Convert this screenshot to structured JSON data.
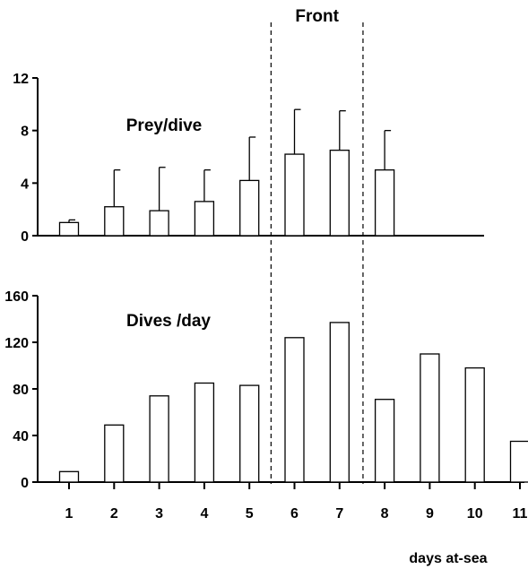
{
  "chart_data": [
    {
      "type": "bar",
      "title": "Prey/dive",
      "categories": [
        "1",
        "2",
        "3",
        "4",
        "5",
        "6",
        "7",
        "8",
        "9",
        "10",
        "11"
      ],
      "values": [
        1,
        2.2,
        1.9,
        2.6,
        4.2,
        6.2,
        6.5,
        5.0,
        null,
        null,
        null
      ],
      "error_upper": [
        1.2,
        5.0,
        5.2,
        5.0,
        7.5,
        9.6,
        9.5,
        8.0,
        null,
        null,
        null
      ],
      "ylim": [
        0,
        12
      ],
      "yticks": [
        "0",
        "4",
        "8",
        "12"
      ],
      "xlabel": "",
      "ylabel": ""
    },
    {
      "type": "bar",
      "title": "Dives /day",
      "categories": [
        "1",
        "2",
        "3",
        "4",
        "5",
        "6",
        "7",
        "8",
        "9",
        "10",
        "11"
      ],
      "values": [
        9,
        49,
        74,
        85,
        83,
        124,
        137,
        71,
        110,
        98,
        35
      ],
      "ylim": [
        0,
        160
      ],
      "yticks": [
        "0",
        "40",
        "80",
        "120",
        "160"
      ],
      "xlabel": "days at-sea",
      "ylabel": ""
    }
  ],
  "annotation": {
    "front_label": "Front",
    "front_between_days": [
      5.5,
      7.5
    ]
  }
}
